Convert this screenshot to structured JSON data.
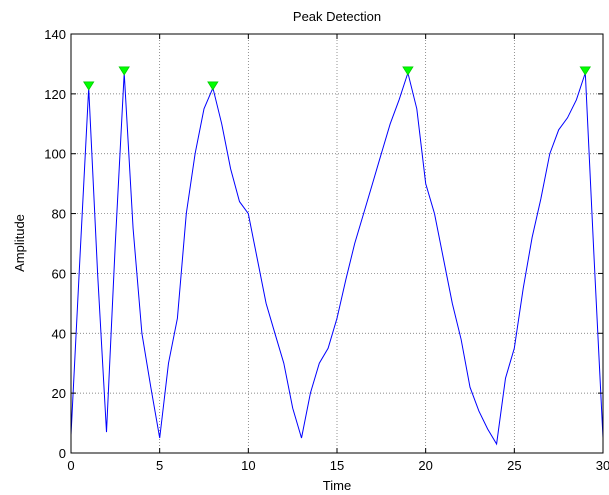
{
  "chart_data": {
    "type": "line",
    "title": "Peak Detection",
    "xlabel": "Time",
    "ylabel": "Amplitude",
    "xlim": [
      0,
      30
    ],
    "ylim": [
      0,
      140
    ],
    "xticks": [
      0,
      5,
      10,
      15,
      20,
      25,
      30
    ],
    "yticks": [
      0,
      20,
      40,
      60,
      80,
      100,
      120,
      140
    ],
    "grid": true,
    "series_color": "#0000ff",
    "marker_color": "#00ff00",
    "series": [
      {
        "x": [
          0,
          0.5,
          1,
          1.5,
          2,
          2.5,
          3,
          3.5,
          4,
          4.5,
          5,
          5.5,
          6,
          6.5,
          7,
          7.5,
          8,
          8.5,
          9,
          9.5,
          10,
          10.5,
          11,
          11.5,
          12,
          12.5,
          13,
          13.5,
          14,
          14.5,
          15,
          15.5,
          16,
          16.5,
          17,
          17.5,
          18,
          18.5,
          19,
          19.5,
          20,
          20.5,
          21,
          21.5,
          22,
          22.5,
          23,
          23.5,
          24,
          24.5,
          25,
          25.5,
          26,
          26.5,
          27,
          27.5,
          28,
          28.5,
          29,
          29.5,
          30
        ],
        "values": [
          6,
          65,
          122,
          60,
          7,
          70,
          127,
          75,
          40,
          22,
          5,
          30,
          45,
          80,
          100,
          115,
          122,
          110,
          95,
          84,
          80,
          65,
          50,
          40,
          30,
          15,
          5,
          20,
          30,
          35,
          45,
          58,
          70,
          80,
          90,
          100,
          110,
          118,
          127,
          115,
          90,
          80,
          65,
          50,
          38,
          22,
          14,
          8,
          3,
          25,
          35,
          55,
          72,
          85,
          100,
          108,
          112,
          118,
          127,
          65,
          5
        ]
      }
    ],
    "peaks": {
      "x": [
        1,
        3,
        8,
        19,
        29
      ],
      "values": [
        122,
        127,
        122,
        127,
        127
      ]
    }
  }
}
